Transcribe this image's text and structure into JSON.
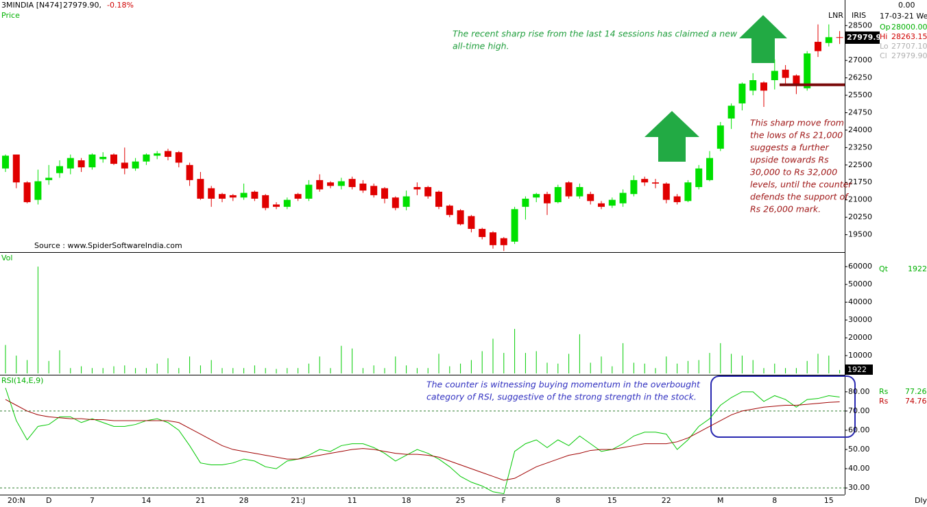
{
  "header": {
    "title": "3MINDIA [N474]",
    "last": "27979.90,",
    "change": "-0.18%",
    "price_label": "Price",
    "corner_value": "0.00",
    "lnr": "LNR",
    "iris": "IRIS",
    "date": "17-03-21 We",
    "source": "Source : www.SpiderSoftwareIndia.com",
    "period": "Dly"
  },
  "ohlc_info": [
    {
      "label": "Op",
      "value": "28000.00",
      "color": "#00b000"
    },
    {
      "label": "Hi",
      "value": "28263.15",
      "color": "#d00000"
    },
    {
      "label": "Lo",
      "value": "27707.10",
      "color": "#b0b0b0"
    },
    {
      "label": "Cl",
      "value": "27979.90",
      "color": "#b0b0b0"
    }
  ],
  "annotations": [
    {
      "lines": [
        "The recent sharp rise from the last 14 sessions has claimed a new",
        "all-time high."
      ],
      "color": "#1f9e3c"
    },
    {
      "lines": [
        "This sharp move from",
        "the lows of Rs 21,000",
        "suggests a further",
        "upside towards Rs",
        "30,000 to Rs 32,000",
        "levels, until the counter",
        "defends the support of",
        "Rs 26,000 mark."
      ],
      "color": "#a01818"
    },
    {
      "lines": [
        "The counter is witnessing buying momentum in the overbought",
        "category of RSI, suggestive of the strong strength in the stock."
      ],
      "color": "#3030c0"
    }
  ],
  "chart_data": [
    {
      "type": "candlestick",
      "categories": [
        null,
        "20:N",
        null,
        null,
        "D",
        null,
        null,
        null,
        "7",
        null,
        null,
        null,
        null,
        "14",
        null,
        null,
        null,
        null,
        "21",
        null,
        null,
        null,
        "28",
        null,
        null,
        null,
        null,
        "21:J",
        null,
        null,
        null,
        null,
        "11",
        null,
        null,
        null,
        null,
        "18",
        null,
        null,
        null,
        null,
        "25",
        null,
        null,
        null,
        "F",
        null,
        null,
        null,
        null,
        "8",
        null,
        null,
        null,
        null,
        "15",
        null,
        null,
        null,
        null,
        "22",
        null,
        null,
        null,
        null,
        "M",
        null,
        null,
        null,
        null,
        "8",
        null,
        null,
        null,
        null,
        "15",
        null
      ],
      "open": [
        22350,
        22950,
        21750,
        21000,
        21850,
        22150,
        22350,
        22700,
        22400,
        22750,
        22950,
        22600,
        22350,
        22650,
        22900,
        23100,
        23050,
        22500,
        21900,
        21500,
        21250,
        21200,
        21100,
        21350,
        21200,
        20800,
        20700,
        21250,
        21050,
        21850,
        21750,
        21600,
        21900,
        21700,
        21600,
        21500,
        21100,
        20700,
        21550,
        21550,
        21350,
        20750,
        20550,
        20300,
        19750,
        19600,
        19350,
        19200,
        20700,
        21100,
        21250,
        20900,
        21750,
        21150,
        21250,
        20850,
        20750,
        20850,
        21250,
        21900,
        21750,
        21700,
        21150,
        20950,
        21550,
        21850,
        23200,
        24500,
        25150,
        25700,
        26050,
        26150,
        26600,
        26350,
        25800,
        27800,
        27750,
        28000
      ],
      "high": [
        22950,
        22950,
        21800,
        22300,
        22500,
        22700,
        22950,
        22800,
        23000,
        23050,
        23000,
        23250,
        22800,
        23000,
        23100,
        23200,
        23100,
        22600,
        22200,
        21600,
        21300,
        21250,
        21700,
        21400,
        21250,
        20900,
        21100,
        21300,
        21850,
        22100,
        21800,
        21950,
        22000,
        21850,
        21700,
        21550,
        21150,
        21400,
        21750,
        21600,
        21400,
        20800,
        20600,
        20350,
        19800,
        19650,
        19400,
        20700,
        21150,
        21300,
        21350,
        21650,
        21800,
        21700,
        21350,
        20950,
        21100,
        21450,
        22050,
        22000,
        21900,
        21750,
        21250,
        21850,
        22500,
        23100,
        24350,
        25150,
        26050,
        26450,
        26100,
        27050,
        26800,
        26400,
        27400,
        28550,
        28550,
        28263.15
      ],
      "low": [
        22200,
        21500,
        20850,
        20800,
        21650,
        21950,
        22100,
        22200,
        22300,
        22600,
        22500,
        22100,
        22250,
        22500,
        22750,
        22700,
        22400,
        21600,
        21000,
        20700,
        20900,
        20950,
        21000,
        20950,
        20550,
        20600,
        20600,
        20950,
        20950,
        21350,
        21500,
        21450,
        21450,
        21300,
        21100,
        20850,
        20550,
        20550,
        21200,
        21050,
        20600,
        20250,
        19900,
        19600,
        19300,
        18900,
        18800,
        19100,
        20150,
        20900,
        20350,
        20850,
        21050,
        21050,
        20800,
        20600,
        20650,
        20700,
        21150,
        21600,
        21500,
        20850,
        20800,
        20900,
        21450,
        21800,
        23100,
        24050,
        24850,
        25500,
        25000,
        25750,
        25900,
        25550,
        25700,
        27150,
        27600,
        27707.1
      ],
      "close": [
        22900,
        21750,
        20900,
        21800,
        21950,
        22450,
        22800,
        22400,
        22950,
        22850,
        22550,
        22350,
        22650,
        22950,
        23000,
        22850,
        22600,
        21850,
        21050,
        21050,
        21050,
        21100,
        21300,
        21050,
        20650,
        20700,
        21000,
        21050,
        21650,
        21450,
        21600,
        21800,
        21550,
        21400,
        21200,
        21050,
        20650,
        21150,
        21450,
        21150,
        20700,
        20350,
        19950,
        19750,
        19400,
        19050,
        19050,
        20600,
        21050,
        21250,
        20850,
        21550,
        21150,
        21550,
        20950,
        20700,
        21000,
        21300,
        21850,
        21750,
        21700,
        21000,
        20900,
        21750,
        22350,
        22800,
        24200,
        25050,
        26000,
        26150,
        25700,
        26550,
        26250,
        25950,
        27300,
        27400,
        28000,
        27979.9
      ],
      "up_color": "#00e000",
      "down_color": "#e00000",
      "ylim": [
        18750,
        29600
      ],
      "yticks": [
        19500,
        20250,
        21000,
        21750,
        22500,
        23250,
        24000,
        24750,
        25500,
        26250,
        27000,
        28500
      ],
      "support_level": 25950,
      "support_color": "#7a0a0a"
    },
    {
      "type": "bar",
      "title": "Vol",
      "qt_label": "Qt",
      "color": "#00cc00",
      "values": [
        16000,
        10000,
        7500,
        60000,
        7000,
        13000,
        3000,
        4000,
        3000,
        3000,
        4000,
        4500,
        3000,
        3000,
        5500,
        8500,
        3000,
        9500,
        4500,
        7500,
        3000,
        3000,
        3000,
        4500,
        3000,
        2500,
        3000,
        3000,
        5500,
        9500,
        3000,
        15500,
        14000,
        3000,
        4500,
        3000,
        9500,
        4500,
        3000,
        3000,
        11000,
        4000,
        5500,
        7500,
        12500,
        19500,
        11500,
        25000,
        11500,
        12500,
        6000,
        5500,
        11000,
        22000,
        6000,
        9500,
        4000,
        17000,
        6000,
        5500,
        3000,
        9500,
        5500,
        7000,
        7500,
        11500,
        17000,
        11000,
        10000,
        7500,
        3000,
        5500,
        3000,
        3000,
        7000,
        11000,
        10000,
        1922
      ],
      "ylim": [
        0,
        67000
      ],
      "yticks": [
        10000,
        20000,
        30000,
        40000,
        50000,
        60000
      ]
    },
    {
      "type": "line",
      "title": "RSI(14,E,9)",
      "series": [
        {
          "name": "Rs",
          "color": "#00c800",
          "values": [
            82,
            65,
            55,
            62,
            63,
            67,
            67,
            64,
            66,
            64,
            62,
            62,
            63,
            65,
            66,
            64,
            60,
            52,
            43,
            42,
            42,
            43,
            45,
            44,
            41,
            40,
            44,
            45,
            47,
            50,
            49,
            52,
            53,
            53,
            51,
            48,
            44,
            47,
            50,
            48,
            45,
            41,
            36,
            33,
            31,
            28,
            27,
            49,
            53,
            55,
            51,
            55,
            52,
            57,
            53,
            49,
            50,
            53,
            57,
            59,
            59,
            58,
            50,
            55,
            62,
            66,
            73,
            77,
            80,
            80,
            75,
            78,
            76,
            72,
            76,
            76.5,
            78,
            77.26
          ]
        },
        {
          "name": "Rs",
          "color": "#a00000",
          "values": [
            76,
            73,
            70,
            68,
            67,
            66.5,
            66,
            66,
            65.5,
            65.5,
            65,
            65,
            65,
            65,
            65,
            65,
            64,
            61,
            58,
            55,
            52,
            50,
            49,
            48,
            47,
            46,
            45,
            45,
            46,
            47,
            48,
            49,
            50,
            50.5,
            50,
            49,
            48,
            47.5,
            47.5,
            47,
            46,
            44,
            42,
            40,
            38,
            36,
            34,
            35,
            38,
            41,
            43,
            45,
            47,
            48,
            49.5,
            50,
            50,
            51,
            52,
            53,
            53,
            53,
            54,
            56,
            59,
            62,
            65,
            68,
            70,
            71,
            72,
            72.5,
            73,
            73,
            73.5,
            74,
            74.5,
            74.76
          ]
        }
      ],
      "ylim": [
        26.5,
        88.5
      ],
      "yticks": [
        {
          "value": 30,
          "label": "30.00"
        },
        {
          "value": 40,
          "label": "40.00"
        },
        {
          "value": 50,
          "label": "50.00"
        },
        {
          "value": 60,
          "label": "60.00"
        },
        {
          "value": 70,
          "label": "70.00"
        },
        {
          "value": 80,
          "label": "80.00"
        }
      ],
      "reference_lines": [
        30,
        70
      ]
    }
  ]
}
